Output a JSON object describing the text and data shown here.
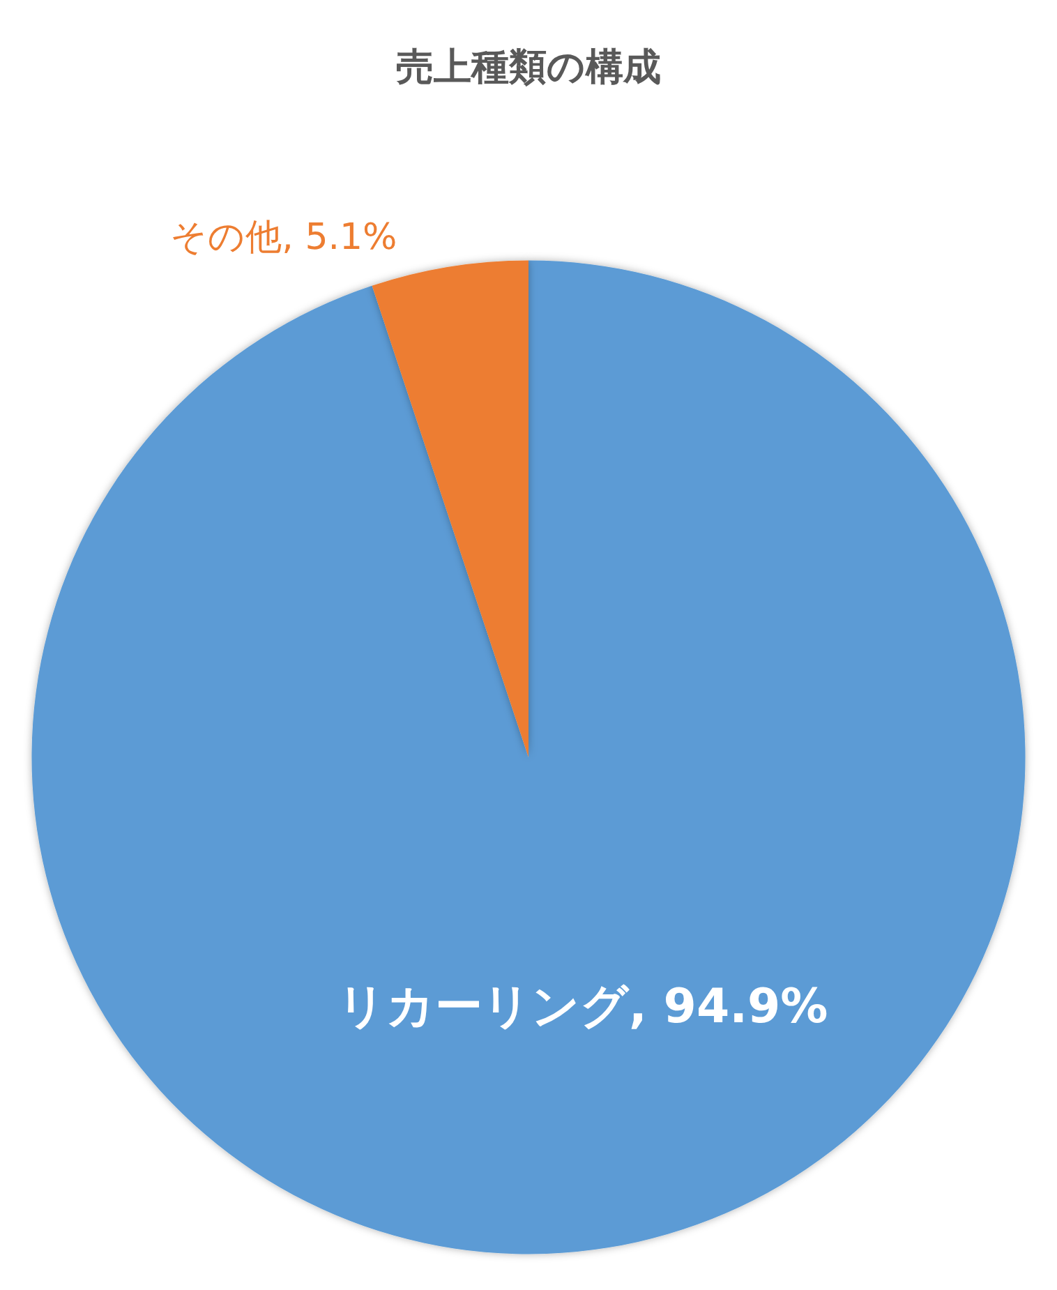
{
  "chart_data": {
    "type": "pie",
    "title": "売上種類の構成",
    "categories": [
      "リカーリング",
      "その他"
    ],
    "values": [
      94.9,
      5.1
    ],
    "colors": [
      "#5b9bd5",
      "#ed7d31"
    ],
    "value_labels": [
      ", 94.9%",
      ", 5.1%"
    ],
    "legend": false
  }
}
